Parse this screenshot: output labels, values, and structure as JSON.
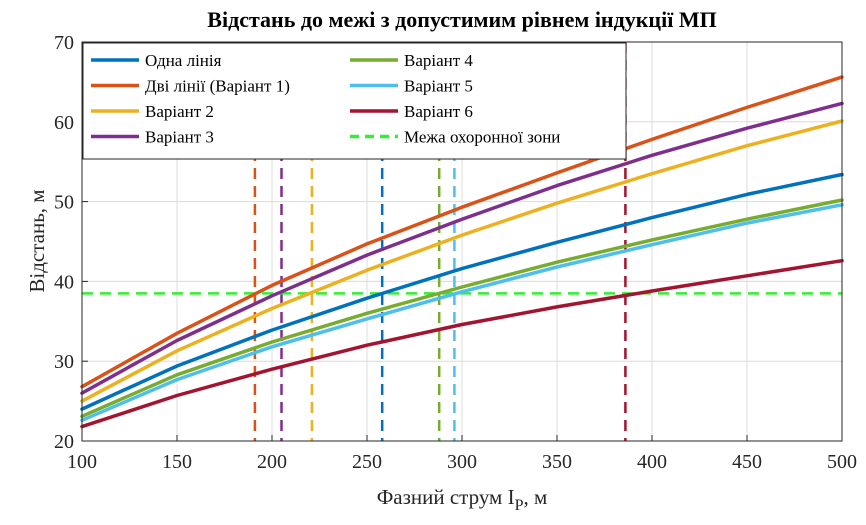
{
  "chart_data": {
    "type": "line",
    "title": "Відстань до межі з допустимим рівнем індукції МП",
    "xlabel": "Фазний струм I",
    "xlabel_sub": "P",
    "xlabel_suffix": ", м",
    "ylabel": "Відстань, м",
    "xlim": [
      100,
      500
    ],
    "ylim": [
      20,
      70
    ],
    "xticks": [
      100,
      150,
      200,
      250,
      300,
      350,
      400,
      450,
      500
    ],
    "yticks": [
      20,
      30,
      40,
      50,
      60,
      70
    ],
    "grid": true,
    "legend_position": "top-left",
    "x": [
      100,
      150,
      200,
      250,
      300,
      350,
      400,
      450,
      500
    ],
    "series": [
      {
        "name": "Одна лінія",
        "color": "#0072BD",
        "values": [
          24.0,
          29.4,
          33.9,
          37.9,
          41.6,
          44.9,
          48.0,
          50.9,
          53.4
        ],
        "threshold_x": 258
      },
      {
        "name": "Дві лінії (Варіант 1)",
        "color": "#D95319",
        "values": [
          26.8,
          33.5,
          39.5,
          44.7,
          49.3,
          53.6,
          57.8,
          61.8,
          65.6
        ],
        "threshold_x": 191
      },
      {
        "name": "Варіант 2",
        "color": "#EDB120",
        "values": [
          25.0,
          31.3,
          36.6,
          41.4,
          45.8,
          49.8,
          53.5,
          57.0,
          60.1
        ],
        "threshold_x": 221
      },
      {
        "name": "Варіант 3",
        "color": "#7E2F8E",
        "values": [
          26.0,
          32.6,
          38.2,
          43.3,
          47.8,
          52.0,
          55.8,
          59.2,
          62.3
        ],
        "threshold_x": 205
      },
      {
        "name": "Варіант 4",
        "color": "#77AC30",
        "values": [
          23.1,
          28.3,
          32.4,
          36.0,
          39.3,
          42.4,
          45.2,
          47.8,
          50.2
        ],
        "threshold_x": 288
      },
      {
        "name": "Варіант 5",
        "color": "#4DBEEE",
        "values": [
          22.6,
          27.7,
          31.8,
          35.3,
          38.7,
          41.8,
          44.6,
          47.3,
          49.6
        ],
        "threshold_x": 296
      },
      {
        "name": "Варіант 6",
        "color": "#A2142F",
        "values": [
          21.8,
          25.7,
          29.0,
          32.0,
          34.6,
          36.8,
          38.8,
          40.7,
          42.6
        ],
        "threshold_x": 386
      }
    ],
    "reference_line": {
      "name": "Межа охоронної зони",
      "y": 38.5,
      "color": "#33EE33"
    }
  }
}
